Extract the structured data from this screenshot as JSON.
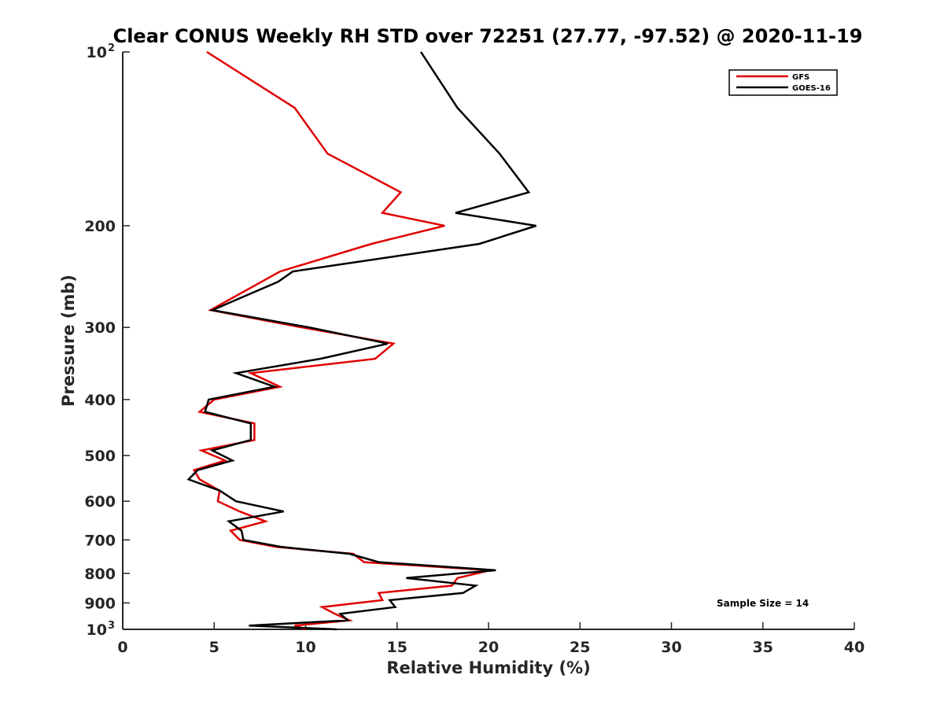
{
  "chart_data": {
    "type": "line",
    "title": "Clear CONUS Weekly RH STD over 72251 (27.77, -97.52) @ 2020-11-19",
    "xlabel": "Relative Humidity (%)",
    "ylabel": "Pressure (mb)",
    "xlim": [
      0,
      40
    ],
    "ylim": [
      100,
      1000
    ],
    "yscale": "log",
    "y_reversed": true,
    "x_ticks": [
      "0",
      "5",
      "10",
      "15",
      "20",
      "25",
      "30",
      "35",
      "40"
    ],
    "y_ticks": [
      {
        "value": 100,
        "label": "10",
        "exp": "2"
      },
      {
        "value": 200,
        "label": "200"
      },
      {
        "value": 300,
        "label": "300"
      },
      {
        "value": 400,
        "label": "400"
      },
      {
        "value": 500,
        "label": "500"
      },
      {
        "value": 600,
        "label": "600"
      },
      {
        "value": 700,
        "label": "700"
      },
      {
        "value": 800,
        "label": "800"
      },
      {
        "value": 900,
        "label": "900"
      },
      {
        "value": 1000,
        "label": "10",
        "exp": "3"
      }
    ],
    "legend_position": "top-right",
    "grid": false,
    "annotation": "Sample Size = 14",
    "series": [
      {
        "name": "GFS",
        "color": "#e00000",
        "pressure": [
          100,
          125,
          150,
          175,
          190,
          200,
          215,
          240,
          280,
          300,
          320,
          340,
          360,
          380,
          400,
          420,
          440,
          470,
          490,
          510,
          530,
          550,
          575,
          600,
          625,
          650,
          675,
          700,
          720,
          740,
          765,
          790,
          815,
          840,
          865,
          890,
          915,
          940,
          965,
          985,
          1000
        ],
        "values": [
          4.6,
          9.4,
          11.2,
          15.2,
          14.2,
          17.6,
          13.6,
          8.6,
          4.8,
          9.8,
          14.8,
          13.8,
          7.0,
          8.6,
          5.0,
          4.2,
          7.2,
          7.2,
          4.3,
          5.6,
          3.9,
          4.2,
          5.3,
          5.2,
          6.4,
          7.8,
          5.9,
          6.4,
          8.4,
          12.6,
          13.2,
          20.1,
          18.3,
          18.0,
          14.0,
          14.2,
          10.9,
          11.6,
          12.4,
          9.4,
          10.0
        ]
      },
      {
        "name": "GOES-16",
        "color": "#000000",
        "pressure": [
          100,
          125,
          150,
          175,
          190,
          200,
          215,
          240,
          250,
          280,
          300,
          320,
          340,
          360,
          380,
          400,
          420,
          440,
          470,
          490,
          510,
          530,
          550,
          575,
          600,
          625,
          650,
          675,
          700,
          720,
          740,
          765,
          790,
          815,
          840,
          865,
          890,
          915,
          940,
          965,
          985,
          1000
        ],
        "values": [
          16.3,
          18.3,
          20.6,
          22.2,
          18.2,
          22.6,
          19.5,
          9.3,
          8.5,
          4.9,
          10.2,
          14.5,
          10.8,
          6.2,
          8.3,
          4.7,
          4.5,
          7.0,
          7.0,
          4.9,
          6.0,
          4.1,
          3.6,
          5.3,
          6.2,
          8.8,
          5.8,
          6.5,
          6.6,
          8.7,
          12.4,
          14.0,
          20.4,
          15.5,
          19.3,
          18.6,
          14.6,
          14.9,
          11.9,
          12.3,
          6.9,
          11.7
        ]
      }
    ]
  }
}
